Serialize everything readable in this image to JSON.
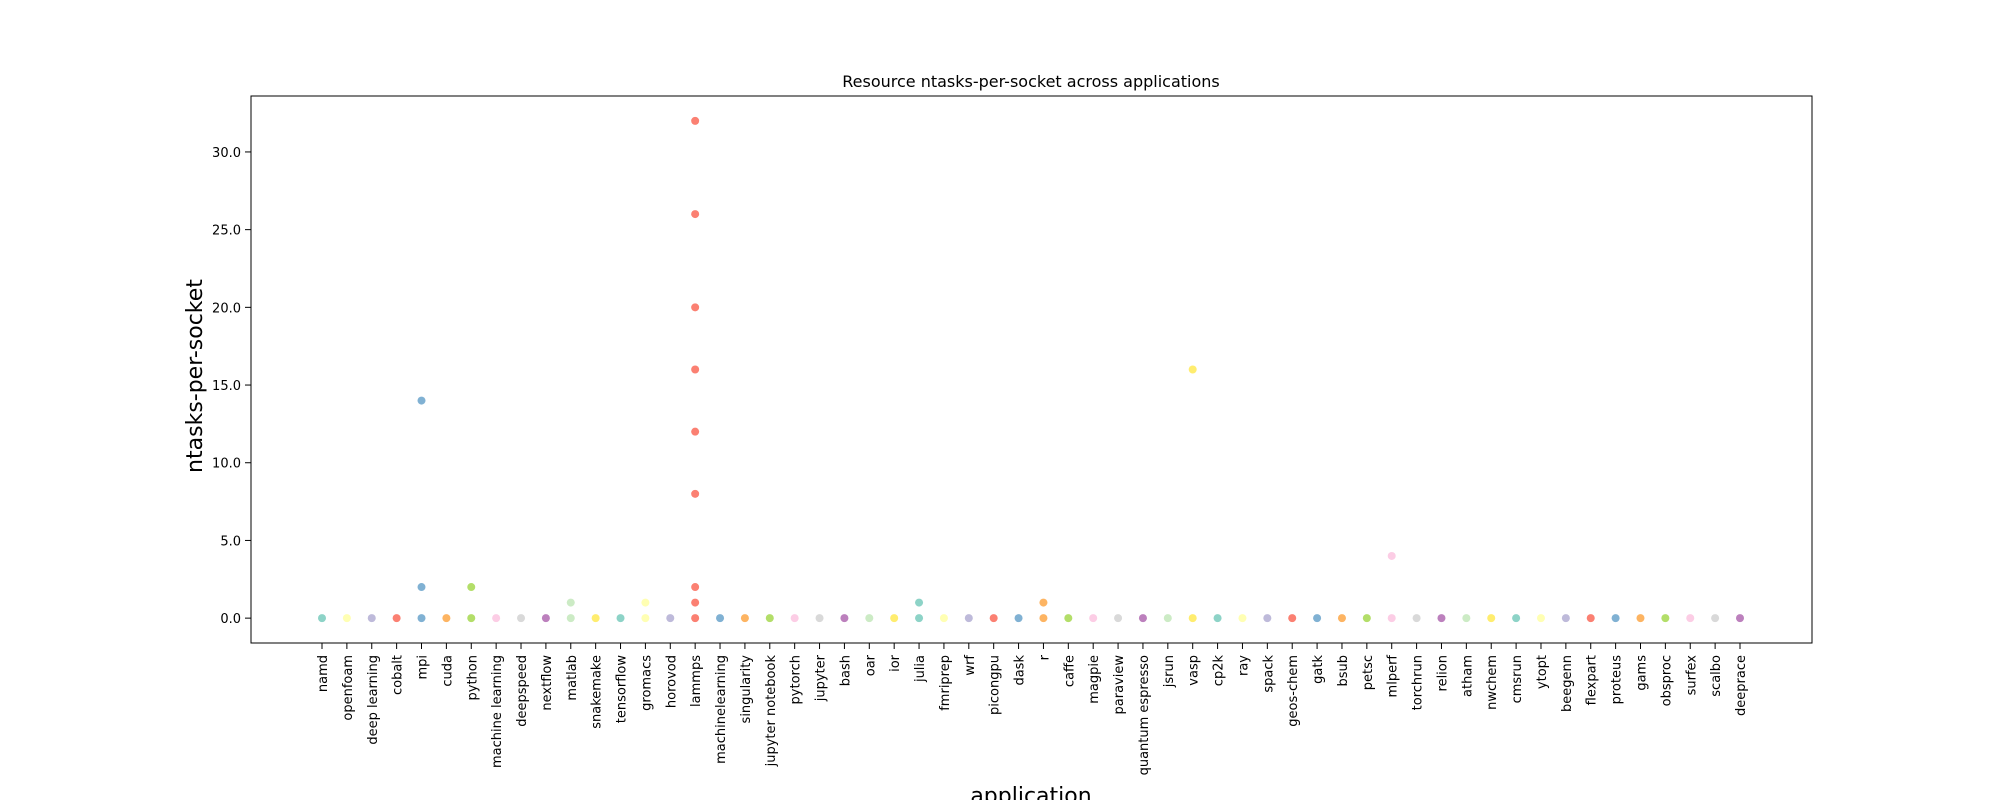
{
  "chart_data": {
    "type": "scatter",
    "title": "Resource ntasks-per-socket across applications",
    "xlabel": "application",
    "ylabel": "ntasks-per-socket",
    "ylim": [
      -1.6,
      33.6
    ],
    "yticks": [
      0.0,
      5.0,
      10.0,
      15.0,
      20.0,
      25.0,
      30.0
    ],
    "ytick_labels": [
      "0.0",
      "5.0",
      "10.0",
      "15.0",
      "20.0",
      "25.0",
      "30.0"
    ],
    "grid": false,
    "legend": "none",
    "categories": [
      "namd",
      "openfoam",
      "deep learning",
      "cobalt",
      "mpi",
      "cuda",
      "python",
      "machine learning",
      "deepspeed",
      "nextflow",
      "matlab",
      "snakemake",
      "tensorflow",
      "gromacs",
      "horovod",
      "lammps",
      "machinelearning",
      "singularity",
      "jupyter notebook",
      "pytorch",
      "jupyter",
      "bash",
      "oar",
      "ior",
      "julia",
      "fmriprep",
      "wrf",
      "picongpu",
      "dask",
      "r",
      "caffe",
      "magpie",
      "paraview",
      "quantum espresso",
      "jsrun",
      "vasp",
      "cp2k",
      "ray",
      "spack",
      "geos-chem",
      "gatk",
      "bsub",
      "petsc",
      "mlperf",
      "torchrun",
      "relion",
      "atham",
      "nwchem",
      "cmsrun",
      "ytopt",
      "beegenn",
      "flexpart",
      "proteus",
      "gams",
      "obsproc",
      "surfex",
      "scalbo",
      "deeprace"
    ],
    "palette": [
      "#8dd3c7",
      "#ffffb3",
      "#bebada",
      "#fb8072",
      "#80b1d3",
      "#fdb462",
      "#b3de69",
      "#fccde5",
      "#d9d9d9",
      "#bc80bd",
      "#ccebc5",
      "#ffed6f"
    ],
    "values": [
      [
        0
      ],
      [
        0
      ],
      [
        0
      ],
      [
        0
      ],
      [
        0,
        2,
        14
      ],
      [
        0
      ],
      [
        0,
        2
      ],
      [
        0
      ],
      [
        0
      ],
      [
        0
      ],
      [
        0,
        1
      ],
      [
        0
      ],
      [
        0
      ],
      [
        0,
        1
      ],
      [
        0
      ],
      [
        0,
        1,
        2,
        8,
        12,
        16,
        20,
        26,
        32
      ],
      [
        0
      ],
      [
        0
      ],
      [
        0
      ],
      [
        0
      ],
      [
        0
      ],
      [
        0
      ],
      [
        0
      ],
      [
        0
      ],
      [
        0,
        1
      ],
      [
        0
      ],
      [
        0
      ],
      [
        0
      ],
      [
        0
      ],
      [
        0,
        1
      ],
      [
        0
      ],
      [
        0
      ],
      [
        0
      ],
      [
        0
      ],
      [
        0
      ],
      [
        0,
        16
      ],
      [
        0
      ],
      [
        0
      ],
      [
        0
      ],
      [
        0
      ],
      [
        0
      ],
      [
        0
      ],
      [
        0
      ],
      [
        0,
        4
      ],
      [
        0
      ],
      [
        0
      ],
      [
        0
      ],
      [
        0
      ],
      [
        0
      ],
      [
        0
      ],
      [
        0
      ],
      [
        0
      ],
      [
        0
      ],
      [
        0
      ],
      [
        0
      ],
      [
        0
      ],
      [
        0
      ],
      [
        0
      ]
    ]
  }
}
